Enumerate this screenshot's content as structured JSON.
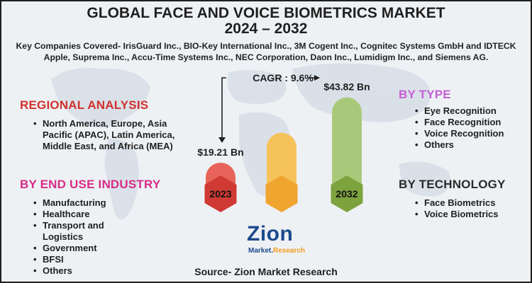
{
  "header": {
    "title_line1": "GLOBAL FACE AND VOICE BIOMETRICS MARKET",
    "title_line2": "2024 – 2032",
    "companies_line1": "Key Companies Covered- IrisGuard Inc., BIO-Key International Inc., 3M Cogent Inc., Cognitec Systems GmbH and IDTECK",
    "companies_line2": "Apple, Suprema Inc., Accu-Time Systems Inc., NEC Corporation, Daon Inc., Lumidigm Inc., and Siemens AG."
  },
  "regional": {
    "heading": "REGIONAL ANALYSIS",
    "items": [
      "North America, Europe, Asia Pacific (APAC), Latin America, Middle East, and Africa (MEA)"
    ]
  },
  "end_use": {
    "heading": "BY END USE INDUSTRY",
    "items": [
      "Manufacturing",
      "Healthcare",
      "Transport and Logistics",
      "Government",
      "BFSI",
      "Others"
    ]
  },
  "by_type": {
    "heading": "BY TYPE",
    "items": [
      "Eye Recognition",
      "Face Recognition",
      "Voice Recognition",
      "Others"
    ]
  },
  "by_technology": {
    "heading": "BY TECHNOLOGY",
    "items": [
      "Face Biometrics",
      "Voice Biometrics"
    ]
  },
  "chart_data": {
    "type": "bar",
    "categories": [
      "2023",
      "",
      "2032"
    ],
    "values": [
      19.21,
      30.5,
      43.82
    ],
    "value_labels": [
      "$19.21 Bn",
      "",
      "$43.82 Bn"
    ],
    "cagr_label": "CAGR : 9.6%",
    "colors": [
      "#e8645a",
      "#f6c35a",
      "#a9c97a"
    ],
    "cap_colors": [
      "#cf3b34",
      "#f0a531",
      "#7da33f"
    ],
    "ylim": [
      0,
      48
    ]
  },
  "logo": {
    "main": "Zion",
    "sub_left": "Market.",
    "sub_right": "Research"
  },
  "source": "Source- Zion Market Research",
  "colors": {
    "regional": "#d0312d",
    "end_use": "#d72c88",
    "by_type": "#c45fd6"
  }
}
